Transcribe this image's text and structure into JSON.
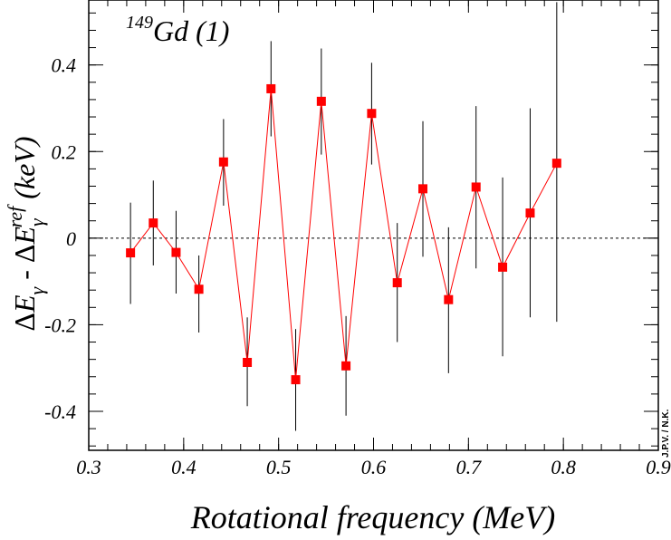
{
  "chart_data": {
    "type": "scatter",
    "title_prefix": "149",
    "title_main": "Gd (1)",
    "xlabel": "Rotational frequency (MeV)",
    "ylabel_parts": {
      "d1": "Δ",
      "e1": "E",
      "sub1": "γ",
      "minus": " - ",
      "d2": "Δ",
      "e2": "E",
      "sub2": "γ",
      "sup2": "ref",
      "unit": " (keV)"
    },
    "xlim": [
      0.3,
      0.9
    ],
    "ylim": [
      -0.49,
      0.55
    ],
    "x_ticks": [
      "0.3",
      "0.4",
      "0.5",
      "0.6",
      "0.7",
      "0.8",
      "0.9"
    ],
    "y_ticks": [
      "-0.4",
      "-0.2",
      "0",
      "0.2",
      "0.4"
    ],
    "reference_line_y": 0,
    "credit": "J.P.V. / N.K.",
    "marker_color": "#ff0000",
    "line_color": "#ff0000",
    "errorbar_color": "#000000",
    "series": [
      {
        "x": [
          0.344,
          0.368,
          0.392,
          0.416,
          0.442,
          0.467,
          0.492,
          0.518,
          0.545,
          0.571,
          0.598,
          0.625,
          0.652,
          0.679,
          0.708,
          0.736,
          0.765,
          0.793
        ],
        "y": [
          -0.034,
          0.035,
          -0.033,
          -0.118,
          0.176,
          -0.287,
          0.345,
          -0.327,
          0.316,
          -0.295,
          0.288,
          -0.103,
          0.114,
          -0.142,
          0.118,
          -0.067,
          0.058,
          0.173
        ],
        "ylow": [
          -0.152,
          -0.063,
          -0.128,
          -0.218,
          0.075,
          -0.388,
          0.235,
          -0.445,
          0.193,
          -0.41,
          0.17,
          -0.24,
          -0.043,
          -0.312,
          -0.07,
          -0.273,
          -0.183,
          -0.193
        ],
        "yhigh": [
          0.082,
          0.133,
          0.063,
          -0.04,
          0.275,
          -0.183,
          0.455,
          -0.21,
          0.438,
          -0.18,
          0.405,
          0.035,
          0.27,
          0.025,
          0.305,
          0.14,
          0.3,
          0.545
        ]
      }
    ]
  }
}
